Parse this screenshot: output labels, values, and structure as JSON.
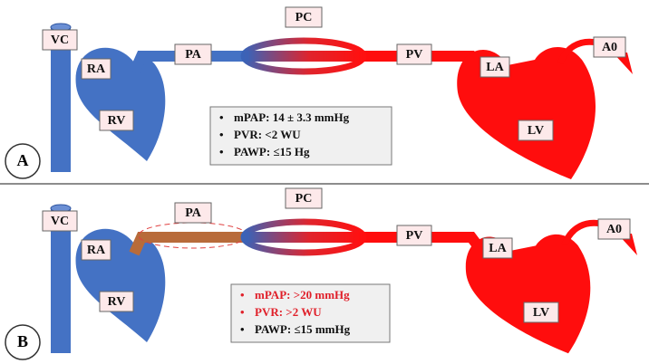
{
  "panels": [
    {
      "letter": "A",
      "labels": {
        "vc": "VC",
        "ra": "RA",
        "rv": "RV",
        "pa": "PA",
        "pc": "PC",
        "pv": "PV",
        "la": "LA",
        "lv": "LV",
        "ao": "A0"
      },
      "bullets": [
        "mPAP: 14 ± 3.3 mmHg",
        "PVR: <2 WU",
        "PAWP: ≤15 Hg"
      ]
    },
    {
      "letter": "B",
      "labels": {
        "vc": "VC",
        "ra": "RA",
        "rv": "RV",
        "pa": "PA",
        "pc": "PC",
        "pv": "PV",
        "la": "LA",
        "lv": "LV",
        "ao": "A0"
      },
      "bullets": [
        "mPAP: >20 mmHg",
        "PVR: >2 WU",
        "PAWP: ≤15 mmHg"
      ]
    }
  ]
}
